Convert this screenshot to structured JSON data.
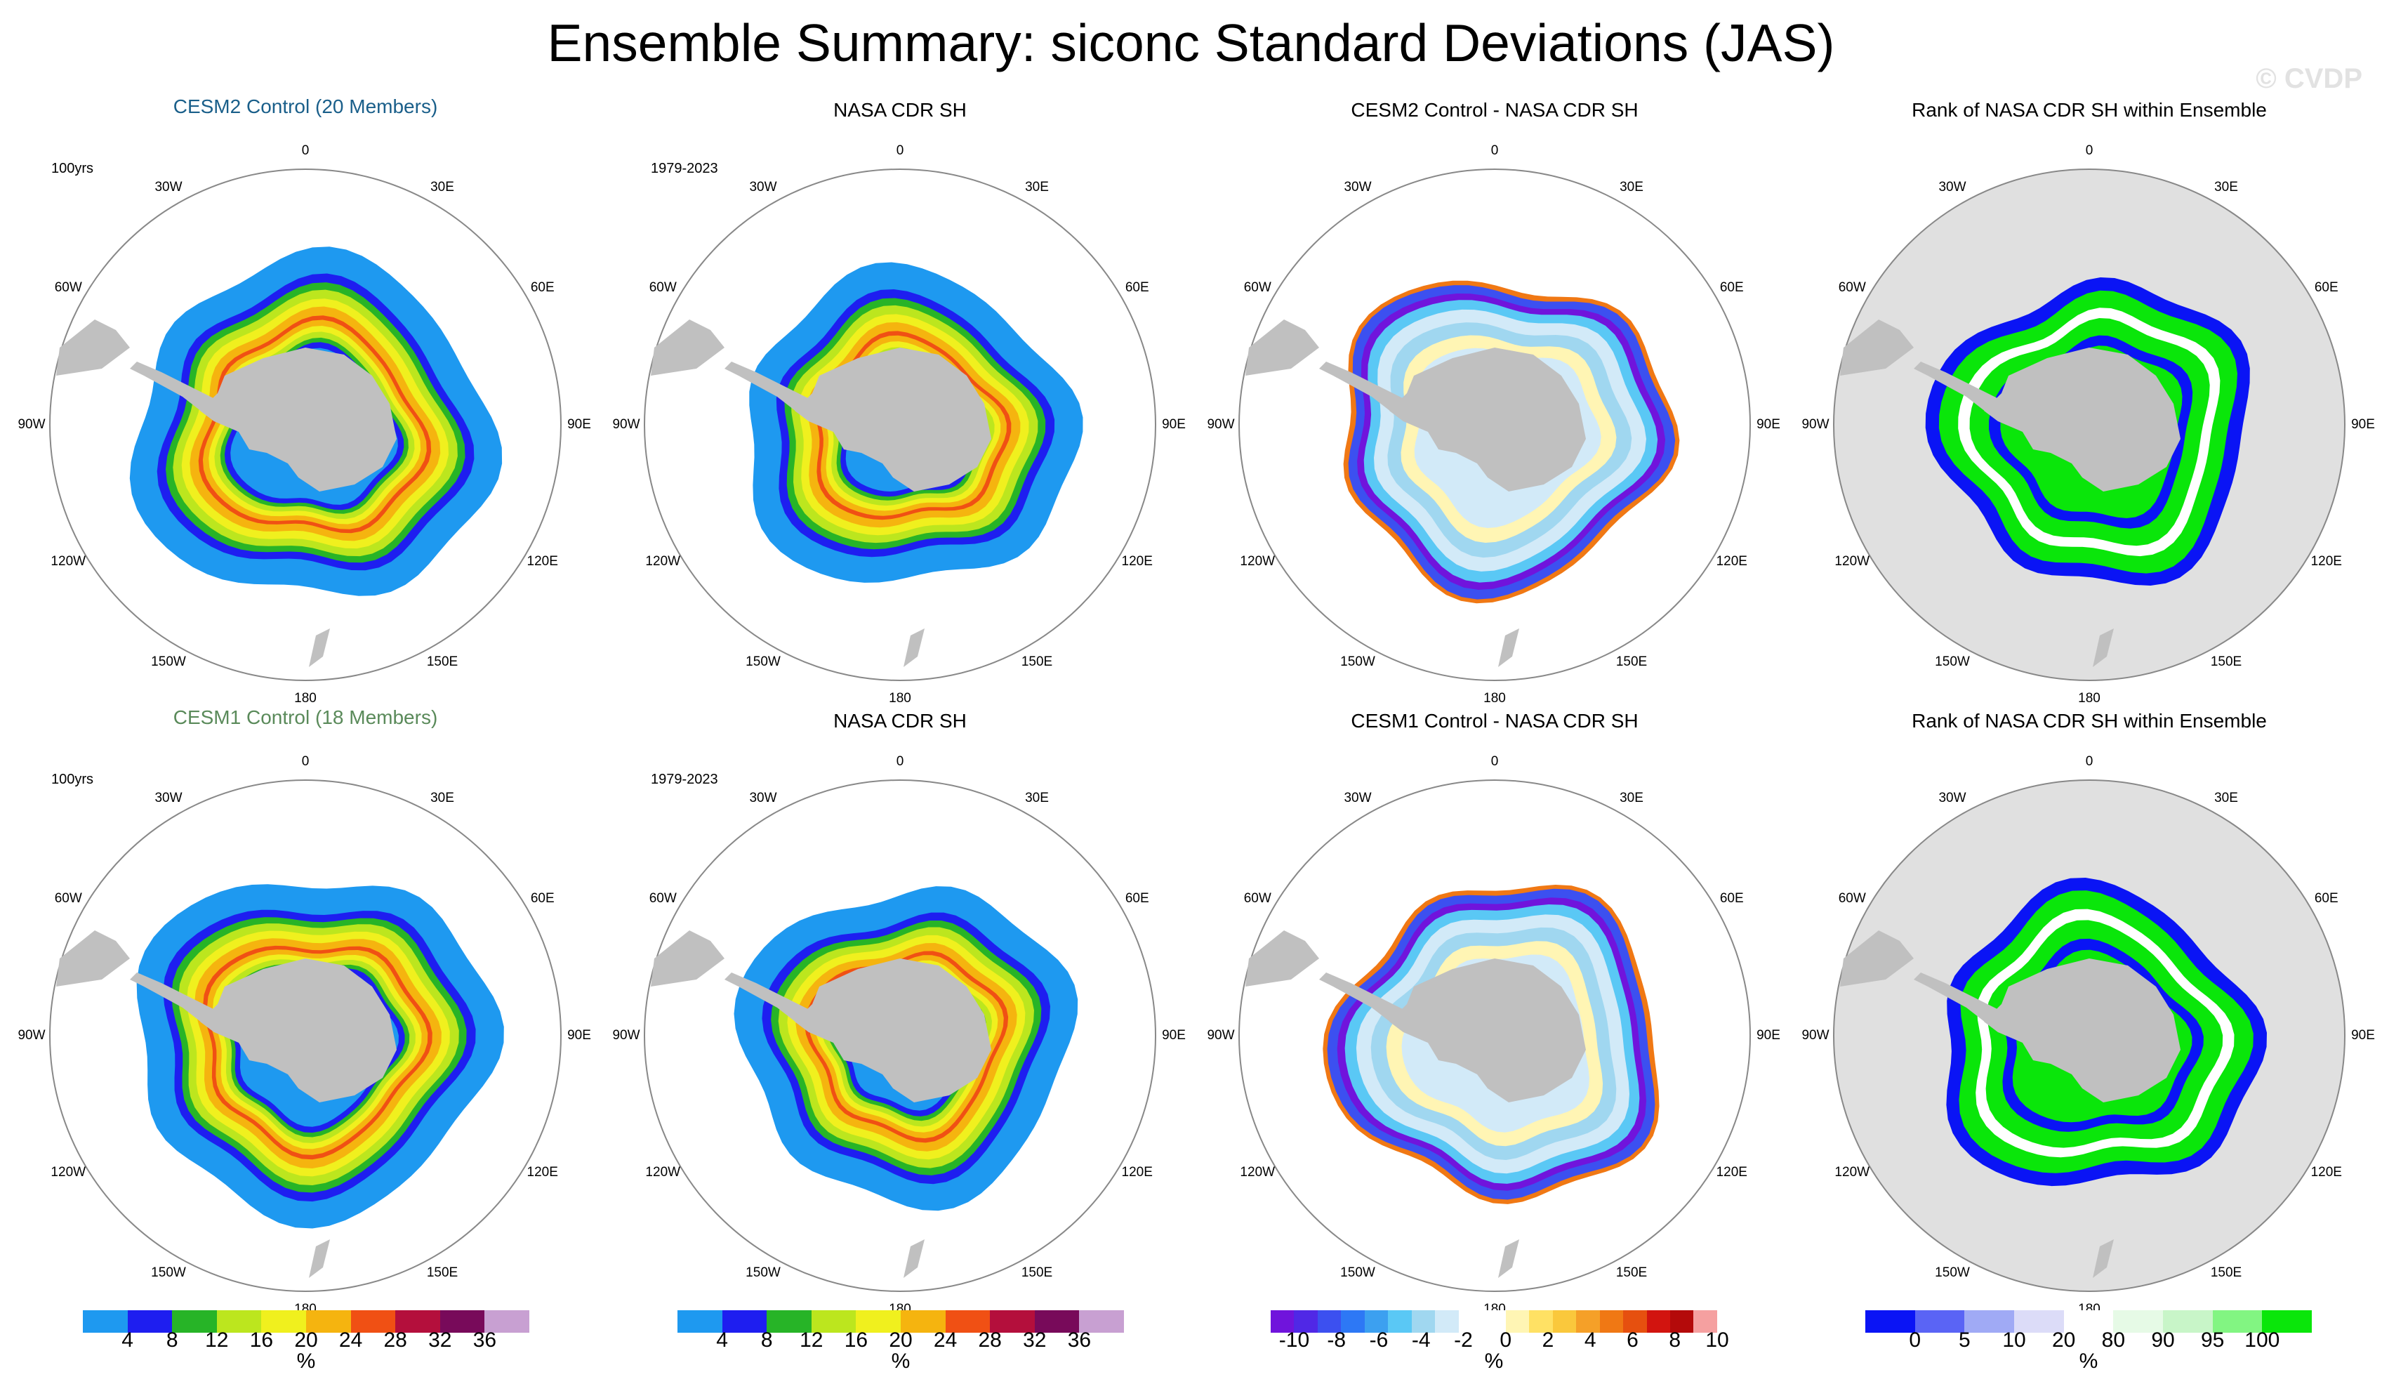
{
  "title": "Ensemble Summary: siconc Standard Deviations (JAS)",
  "watermark": "© CVDP",
  "colors": {
    "stdev_scale": [
      "#1e99f0",
      "#1e1ef0",
      "#27b427",
      "#bce61e",
      "#f0f01e",
      "#f5b40f",
      "#f05014",
      "#b40f3c",
      "#780a5a",
      "#c8a0d2"
    ],
    "diff_scale": [
      "#7014dc",
      "#5028e6",
      "#3c50f0",
      "#2d78f5",
      "#3ca0f0",
      "#5ac8f5",
      "#a0d7f0",
      "#d2eaf8",
      "#ffffff",
      "#ffffff",
      "#fff5b4",
      "#ffe164",
      "#fac83c",
      "#f5a028",
      "#f07814",
      "#e6500f",
      "#d2140f",
      "#b40a0a",
      "#f5a0a0"
    ],
    "rank_scale": [
      "#0a14f5",
      "#5a64f5",
      "#a0aaf5",
      "#dcdcf8",
      "#ffffff",
      "#e6fae6",
      "#c8f5c8",
      "#82f582",
      "#0ae60a"
    ],
    "land": "#c0c0c0",
    "rank_bg": "#e0e0e0",
    "row1_title": "#1a5f8a",
    "row2_title": "#5a8a5a"
  },
  "panels": [
    {
      "title": "CESM2 Control (20 Members)",
      "info": "100yrs"
    },
    {
      "title": "NASA CDR SH",
      "info": "1979-2023"
    },
    {
      "title": "CESM2 Control - NASA CDR SH",
      "info": ""
    },
    {
      "title": "Rank of NASA CDR SH within Ensemble",
      "info": ""
    },
    {
      "title": "CESM1 Control (18 Members)",
      "info": "100yrs"
    },
    {
      "title": "NASA CDR SH",
      "info": "1979-2023"
    },
    {
      "title": "CESM1 Control - NASA CDR SH",
      "info": ""
    },
    {
      "title": "Rank of NASA CDR SH within Ensemble",
      "info": ""
    }
  ],
  "longitude_labels": [
    "0",
    "30E",
    "60E",
    "90E",
    "120E",
    "150E",
    "180",
    "150W",
    "120W",
    "90W",
    "60W",
    "30W"
  ],
  "colorbars": [
    {
      "ticks": [
        "4",
        "8",
        "12",
        "16",
        "20",
        "24",
        "28",
        "32",
        "36"
      ],
      "unit": "%"
    },
    {
      "ticks": [
        "4",
        "8",
        "12",
        "16",
        "20",
        "24",
        "28",
        "32",
        "36"
      ],
      "unit": "%"
    },
    {
      "ticks": [
        "-10",
        "-8",
        "-6",
        "-4",
        "-2",
        "0",
        "2",
        "4",
        "6",
        "8",
        "10"
      ],
      "unit": "%"
    },
    {
      "ticks": [
        "0",
        "5",
        "10",
        "20",
        "80",
        "90",
        "95",
        "100"
      ],
      "unit": "%"
    }
  ]
}
